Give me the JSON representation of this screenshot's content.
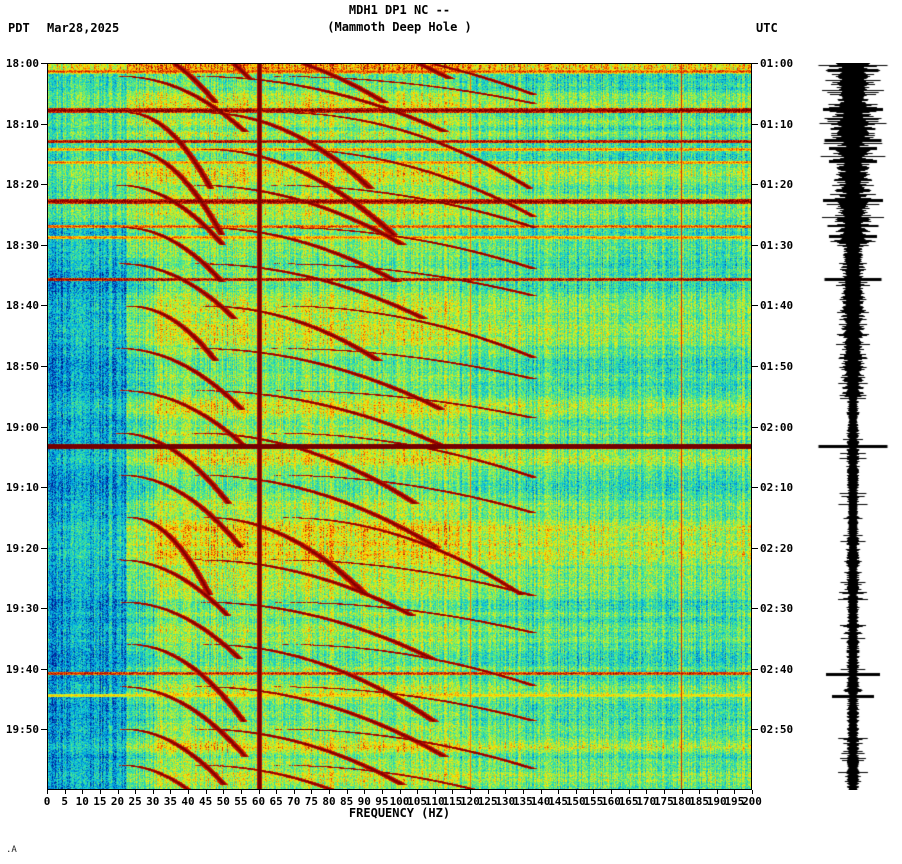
{
  "header": {
    "tz_left": "PDT",
    "date": "Mar28,2025",
    "title_line1": "MDH1 DP1 NC --",
    "title_line2": "(Mammoth Deep Hole )",
    "tz_right": "UTC"
  },
  "footer": {
    "mark": ".A"
  },
  "chart_data": {
    "type": "heatmap",
    "title": "MDH1 DP1 NC --",
    "subtitle": "(Mammoth Deep Hole )",
    "xlabel": "FREQUENCY (HZ)",
    "x_range": [
      0,
      200
    ],
    "x_tick_step": 5,
    "x_tick_labels": [
      "0",
      "5",
      "10",
      "15",
      "20",
      "25",
      "30",
      "35",
      "40",
      "45",
      "50",
      "55",
      "60",
      "65",
      "70",
      "75",
      "80",
      "85",
      "90",
      "95",
      "100",
      "105",
      "110",
      "115",
      "120",
      "125",
      "130",
      "135",
      "140",
      "145",
      "150",
      "155",
      "160",
      "165",
      "170",
      "175",
      "180",
      "185",
      "190",
      "195",
      "200"
    ],
    "time_span_min": 120,
    "tick_interval_min": 10,
    "left_axis": {
      "timezone": "PDT",
      "labels": [
        "18:00",
        "18:10",
        "18:20",
        "18:30",
        "18:40",
        "18:50",
        "19:00",
        "19:10",
        "19:20",
        "19:30",
        "19:40",
        "19:50"
      ]
    },
    "right_axis": {
      "timezone": "UTC",
      "labels": [
        "01:00",
        "01:10",
        "01:20",
        "01:30",
        "01:40",
        "01:50",
        "02:00",
        "02:10",
        "02:20",
        "02:30",
        "02:40",
        "02:50"
      ]
    },
    "colormap": "jet",
    "features": {
      "powerline_hz": [
        60,
        120,
        180
      ],
      "tremor_events_start_min": [
        -8,
        -3,
        2,
        8,
        14,
        20,
        27,
        33,
        40,
        47,
        54,
        61,
        68,
        75,
        82,
        89,
        96,
        103,
        110,
        116
      ],
      "event_duration_min": 11,
      "fundamental_hz": [
        22,
        50
      ],
      "harmonics": 3,
      "broadband_streaks": [
        [
          1.2,
          0.85
        ],
        [
          7.6,
          1.0
        ],
        [
          12.7,
          0.95
        ],
        [
          14.0,
          0.8
        ],
        [
          16.2,
          0.8
        ],
        [
          22.6,
          1.0
        ],
        [
          26.8,
          0.85
        ],
        [
          28.6,
          0.8
        ],
        [
          35.6,
          0.95
        ],
        [
          63.2,
          1.15
        ],
        [
          100.8,
          0.9
        ],
        [
          104.5,
          0.7
        ]
      ]
    }
  }
}
